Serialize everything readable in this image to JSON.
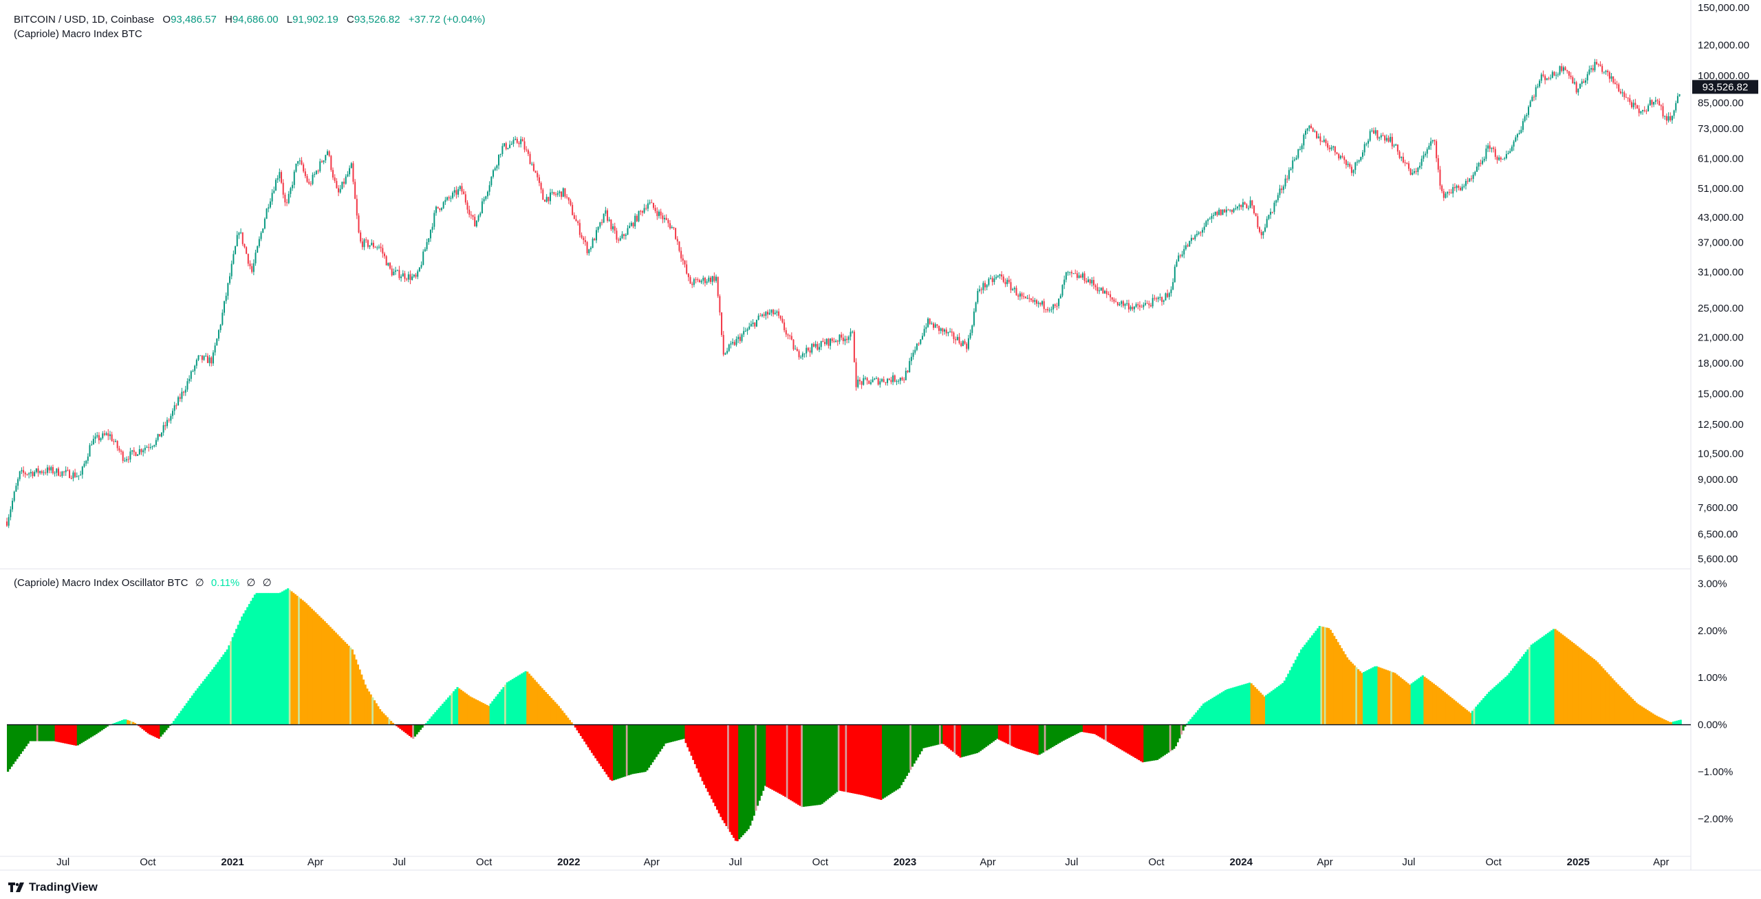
{
  "header": {
    "symbol": "BITCOIN / USD, 1D, Coinbase",
    "o_label": "O",
    "o_value": "93,486.57",
    "h_label": "H",
    "h_value": "94,686.00",
    "l_label": "L",
    "l_value": "91,902.19",
    "c_label": "C",
    "c_value": "93,526.82",
    "change": "+37.72 (+0.04%)",
    "indicator": "(Capriole) Macro Index BTC"
  },
  "oscillator_header": {
    "title": "(Capriole) Macro Index Oscillator BTC",
    "icon1": "∅",
    "value": "0.11%",
    "icon2": "∅",
    "icon3": "∅"
  },
  "price_label": "93,526.82",
  "footer": {
    "brand": "TradingView",
    "logo_icon": "tradingview-logo-icon"
  },
  "colors": {
    "up": "#089981",
    "down": "#f23645",
    "price_tag": "#131722",
    "osc_bull_strong": "#00ffa8",
    "osc_bull_weak": "#ffa500",
    "osc_bear_strong": "#008c00",
    "osc_bear_weak": "#ff0000"
  },
  "chart_data": [
    {
      "type": "line",
      "title": "BITCOIN / USD, 1D, Coinbase",
      "scale": "log",
      "ylim": [
        5300,
        152000
      ],
      "y_ticks": [
        "150,000.00",
        "120,000.00",
        "100,000.00",
        "85,000.00",
        "73,000.00",
        "61,000.00",
        "51,000.00",
        "43,000.00",
        "37,000.00",
        "31,000.00",
        "25,000.00",
        "21,000.00",
        "18,000.00",
        "15,000.00",
        "12,500.00",
        "10,500.00",
        "9,000.00",
        "7,600.00",
        "6,500.00",
        "5,600.00"
      ],
      "x_ticks": [
        "Jul",
        "Oct",
        "2021",
        "Apr",
        "Jul",
        "Oct",
        "2022",
        "Apr",
        "Jul",
        "Oct",
        "2023",
        "Apr",
        "Jul",
        "Oct",
        "2024",
        "Apr",
        "Jul",
        "Oct",
        "2025",
        "Apr"
      ],
      "x_range": [
        "2020-05-01",
        "2025-05-01"
      ],
      "series": [
        {
          "points": [
            [
              "2020-05-01",
              7000
            ],
            [
              "2020-05-15",
              9300
            ],
            [
              "2020-06-15",
              9500
            ],
            [
              "2020-07-20",
              9200
            ],
            [
              "2020-08-01",
              11300
            ],
            [
              "2020-08-20",
              11800
            ],
            [
              "2020-09-05",
              10200
            ],
            [
              "2020-10-10",
              11300
            ],
            [
              "2020-10-25",
              13000
            ],
            [
              "2020-11-10",
              15500
            ],
            [
              "2020-11-25",
              18500
            ],
            [
              "2020-12-10",
              18300
            ],
            [
              "2020-12-20",
              23500
            ],
            [
              "2021-01-08",
              40000
            ],
            [
              "2021-01-22",
              31000
            ],
            [
              "2021-02-08",
              46000
            ],
            [
              "2021-02-21",
              57000
            ],
            [
              "2021-02-28",
              45000
            ],
            [
              "2021-03-13",
              61000
            ],
            [
              "2021-03-25",
              52000
            ],
            [
              "2021-04-14",
              64000
            ],
            [
              "2021-04-25",
              49000
            ],
            [
              "2021-05-10",
              58000
            ],
            [
              "2021-05-19",
              37000
            ],
            [
              "2021-06-10",
              36000
            ],
            [
              "2021-06-22",
              31000
            ],
            [
              "2021-07-20",
              29800
            ],
            [
              "2021-08-10",
              45000
            ],
            [
              "2021-09-06",
              51000
            ],
            [
              "2021-09-21",
              41000
            ],
            [
              "2021-10-20",
              65000
            ],
            [
              "2021-11-10",
              68000
            ],
            [
              "2021-11-25",
              57000
            ],
            [
              "2021-12-04",
              48000
            ],
            [
              "2021-12-27",
              50000
            ],
            [
              "2022-01-22",
              35000
            ],
            [
              "2022-02-10",
              44000
            ],
            [
              "2022-02-24",
              37000
            ],
            [
              "2022-03-28",
              47000
            ],
            [
              "2022-04-25",
              40000
            ],
            [
              "2022-05-12",
              29000
            ],
            [
              "2022-06-10",
              30000
            ],
            [
              "2022-06-18",
              19000
            ],
            [
              "2022-07-30",
              24000
            ],
            [
              "2022-08-14",
              24300
            ],
            [
              "2022-09-06",
              19000
            ],
            [
              "2022-10-05",
              20300
            ],
            [
              "2022-11-05",
              21300
            ],
            [
              "2022-11-09",
              16000
            ],
            [
              "2022-12-31",
              16500
            ],
            [
              "2023-01-25",
              23000
            ],
            [
              "2023-03-10",
              20000
            ],
            [
              "2023-03-22",
              28000
            ],
            [
              "2023-04-14",
              30300
            ],
            [
              "2023-05-12",
              26000
            ],
            [
              "2023-06-15",
              25000
            ],
            [
              "2023-06-25",
              30500
            ],
            [
              "2023-07-15",
              30000
            ],
            [
              "2023-08-17",
              26000
            ],
            [
              "2023-09-11",
              25000
            ],
            [
              "2023-10-15",
              27000
            ],
            [
              "2023-10-24",
              34000
            ],
            [
              "2023-12-05",
              44000
            ],
            [
              "2024-01-11",
              46500
            ],
            [
              "2024-01-23",
              39000
            ],
            [
              "2024-02-15",
              52000
            ],
            [
              "2024-03-14",
              73000
            ],
            [
              "2024-04-15",
              63000
            ],
            [
              "2024-05-01",
              57000
            ],
            [
              "2024-05-21",
              71000
            ],
            [
              "2024-06-10",
              69000
            ],
            [
              "2024-07-05",
              55000
            ],
            [
              "2024-07-29",
              69000
            ],
            [
              "2024-08-05",
              49000
            ],
            [
              "2024-09-06",
              53000
            ],
            [
              "2024-09-27",
              66000
            ],
            [
              "2024-10-10",
              59000
            ],
            [
              "2024-10-29",
              72000
            ],
            [
              "2024-11-12",
              88000
            ],
            [
              "2024-11-22",
              99000
            ],
            [
              "2024-12-05",
              100000
            ],
            [
              "2024-12-17",
              107000
            ],
            [
              "2024-12-30",
              92000
            ],
            [
              "2025-01-20",
              108000
            ],
            [
              "2025-02-01",
              101000
            ],
            [
              "2025-02-25",
              86000
            ],
            [
              "2025-03-10",
              79000
            ],
            [
              "2025-03-25",
              88000
            ],
            [
              "2025-04-08",
              76000
            ],
            [
              "2025-04-18",
              85000
            ],
            [
              "2025-04-22",
              93526.82
            ]
          ]
        }
      ]
    },
    {
      "type": "area",
      "title": "(Capriole) Macro Index Oscillator BTC",
      "ylim": [
        -2.8,
        3.3
      ],
      "y_ticks": [
        "3.00%",
        "2.00%",
        "1.00%",
        "0.00%",
        "−1.00%",
        "−2.00%"
      ],
      "x_range": [
        "2020-05-01",
        "2025-05-01"
      ],
      "series": [
        {
          "points": [
            [
              "2020-05-01",
              -1.0
            ],
            [
              "2020-05-25",
              -0.35
            ],
            [
              "2020-06-20",
              -0.35
            ],
            [
              "2020-07-15",
              -0.45
            ],
            [
              "2020-08-05",
              -0.2
            ],
            [
              "2020-08-20",
              0.0
            ],
            [
              "2020-09-05",
              0.12
            ],
            [
              "2020-09-15",
              0.05
            ],
            [
              "2020-10-01",
              -0.2
            ],
            [
              "2020-10-12",
              -0.3
            ],
            [
              "2020-10-25",
              0.0
            ],
            [
              "2020-11-20",
              0.7
            ],
            [
              "2020-12-10",
              1.2
            ],
            [
              "2020-12-25",
              1.6
            ],
            [
              "2021-01-10",
              2.3
            ],
            [
              "2021-01-25",
              2.8
            ],
            [
              "2021-02-20",
              2.8
            ],
            [
              "2021-03-01",
              2.9
            ],
            [
              "2021-03-20",
              2.6
            ],
            [
              "2021-04-10",
              2.2
            ],
            [
              "2021-05-10",
              1.6
            ],
            [
              "2021-05-25",
              0.8
            ],
            [
              "2021-06-10",
              0.3
            ],
            [
              "2021-06-25",
              0.0
            ],
            [
              "2021-07-15",
              -0.3
            ],
            [
              "2021-08-05",
              0.2
            ],
            [
              "2021-09-01",
              0.8
            ],
            [
              "2021-09-15",
              0.6
            ],
            [
              "2021-10-05",
              0.4
            ],
            [
              "2021-10-25",
              0.9
            ],
            [
              "2021-11-15",
              1.15
            ],
            [
              "2021-12-01",
              0.8
            ],
            [
              "2021-12-20",
              0.4
            ],
            [
              "2022-01-05",
              0.0
            ],
            [
              "2022-01-25",
              -0.6
            ],
            [
              "2022-02-15",
              -1.2
            ],
            [
              "2022-03-10",
              -1.05
            ],
            [
              "2022-03-25",
              -1.0
            ],
            [
              "2022-04-15",
              -0.4
            ],
            [
              "2022-05-05",
              -0.3
            ],
            [
              "2022-05-25",
              -1.2
            ],
            [
              "2022-06-15",
              -2.0
            ],
            [
              "2022-07-01",
              -2.5
            ],
            [
              "2022-07-15",
              -2.2
            ],
            [
              "2022-08-01",
              -1.3
            ],
            [
              "2022-08-20",
              -1.5
            ],
            [
              "2022-09-10",
              -1.75
            ],
            [
              "2022-10-01",
              -1.7
            ],
            [
              "2022-10-20",
              -1.4
            ],
            [
              "2022-11-15",
              -1.5
            ],
            [
              "2022-12-05",
              -1.6
            ],
            [
              "2022-12-25",
              -1.35
            ],
            [
              "2023-01-20",
              -0.5
            ],
            [
              "2023-02-10",
              -0.4
            ],
            [
              "2023-03-01",
              -0.7
            ],
            [
              "2023-03-20",
              -0.6
            ],
            [
              "2023-04-10",
              -0.3
            ],
            [
              "2023-05-01",
              -0.5
            ],
            [
              "2023-05-25",
              -0.65
            ],
            [
              "2023-06-20",
              -0.35
            ],
            [
              "2023-07-10",
              -0.15
            ],
            [
              "2023-07-25",
              -0.2
            ],
            [
              "2023-08-20",
              -0.5
            ],
            [
              "2023-09-15",
              -0.8
            ],
            [
              "2023-10-01",
              -0.75
            ],
            [
              "2023-10-20",
              -0.5
            ],
            [
              "2023-11-01",
              0.0
            ],
            [
              "2023-11-20",
              0.45
            ],
            [
              "2023-12-15",
              0.75
            ],
            [
              "2024-01-10",
              0.9
            ],
            [
              "2024-01-25",
              0.6
            ],
            [
              "2024-02-15",
              0.9
            ],
            [
              "2024-03-05",
              1.6
            ],
            [
              "2024-03-25",
              2.1
            ],
            [
              "2024-04-05",
              2.05
            ],
            [
              "2024-04-25",
              1.4
            ],
            [
              "2024-05-10",
              1.1
            ],
            [
              "2024-05-25",
              1.25
            ],
            [
              "2024-06-15",
              1.1
            ],
            [
              "2024-07-01",
              0.85
            ],
            [
              "2024-07-15",
              1.05
            ],
            [
              "2024-08-01",
              0.8
            ],
            [
              "2024-08-20",
              0.5
            ],
            [
              "2024-09-05",
              0.25
            ],
            [
              "2024-09-25",
              0.7
            ],
            [
              "2024-10-15",
              1.05
            ],
            [
              "2024-11-10",
              1.7
            ],
            [
              "2024-12-05",
              2.05
            ],
            [
              "2024-12-25",
              1.75
            ],
            [
              "2025-01-20",
              1.35
            ],
            [
              "2025-02-10",
              0.9
            ],
            [
              "2025-03-05",
              0.45
            ],
            [
              "2025-03-25",
              0.2
            ],
            [
              "2025-04-10",
              0.05
            ],
            [
              "2025-04-22",
              0.11
            ]
          ]
        }
      ]
    }
  ]
}
